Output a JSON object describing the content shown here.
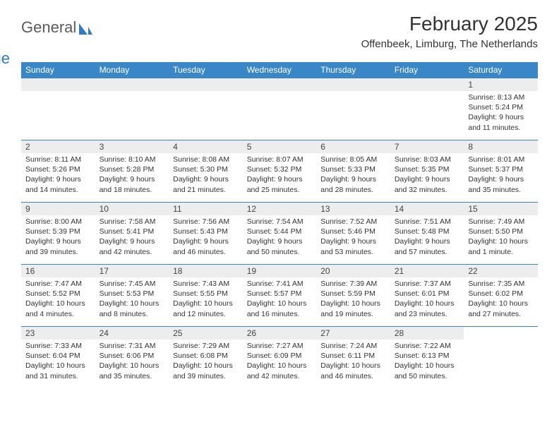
{
  "logo": {
    "general": "General",
    "blue": "Blue"
  },
  "title": "February 2025",
  "subtitle": "Offenbeek, Limburg, The Netherlands",
  "colors": {
    "header_bg": "#3a87c8",
    "header_fg": "#ffffff",
    "daynum_bg": "#ededed",
    "border": "#3a87c8",
    "logo_gray": "#5b5b5b",
    "logo_blue": "#2f7cc4"
  },
  "weekdays": [
    "Sunday",
    "Monday",
    "Tuesday",
    "Wednesday",
    "Thursday",
    "Friday",
    "Saturday"
  ],
  "weeks": [
    [
      null,
      null,
      null,
      null,
      null,
      null,
      {
        "n": "1",
        "sr": "Sunrise: 8:13 AM",
        "ss": "Sunset: 5:24 PM",
        "d1": "Daylight: 9 hours",
        "d2": "and 11 minutes."
      }
    ],
    [
      {
        "n": "2",
        "sr": "Sunrise: 8:11 AM",
        "ss": "Sunset: 5:26 PM",
        "d1": "Daylight: 9 hours",
        "d2": "and 14 minutes."
      },
      {
        "n": "3",
        "sr": "Sunrise: 8:10 AM",
        "ss": "Sunset: 5:28 PM",
        "d1": "Daylight: 9 hours",
        "d2": "and 18 minutes."
      },
      {
        "n": "4",
        "sr": "Sunrise: 8:08 AM",
        "ss": "Sunset: 5:30 PM",
        "d1": "Daylight: 9 hours",
        "d2": "and 21 minutes."
      },
      {
        "n": "5",
        "sr": "Sunrise: 8:07 AM",
        "ss": "Sunset: 5:32 PM",
        "d1": "Daylight: 9 hours",
        "d2": "and 25 minutes."
      },
      {
        "n": "6",
        "sr": "Sunrise: 8:05 AM",
        "ss": "Sunset: 5:33 PM",
        "d1": "Daylight: 9 hours",
        "d2": "and 28 minutes."
      },
      {
        "n": "7",
        "sr": "Sunrise: 8:03 AM",
        "ss": "Sunset: 5:35 PM",
        "d1": "Daylight: 9 hours",
        "d2": "and 32 minutes."
      },
      {
        "n": "8",
        "sr": "Sunrise: 8:01 AM",
        "ss": "Sunset: 5:37 PM",
        "d1": "Daylight: 9 hours",
        "d2": "and 35 minutes."
      }
    ],
    [
      {
        "n": "9",
        "sr": "Sunrise: 8:00 AM",
        "ss": "Sunset: 5:39 PM",
        "d1": "Daylight: 9 hours",
        "d2": "and 39 minutes."
      },
      {
        "n": "10",
        "sr": "Sunrise: 7:58 AM",
        "ss": "Sunset: 5:41 PM",
        "d1": "Daylight: 9 hours",
        "d2": "and 42 minutes."
      },
      {
        "n": "11",
        "sr": "Sunrise: 7:56 AM",
        "ss": "Sunset: 5:43 PM",
        "d1": "Daylight: 9 hours",
        "d2": "and 46 minutes."
      },
      {
        "n": "12",
        "sr": "Sunrise: 7:54 AM",
        "ss": "Sunset: 5:44 PM",
        "d1": "Daylight: 9 hours",
        "d2": "and 50 minutes."
      },
      {
        "n": "13",
        "sr": "Sunrise: 7:52 AM",
        "ss": "Sunset: 5:46 PM",
        "d1": "Daylight: 9 hours",
        "d2": "and 53 minutes."
      },
      {
        "n": "14",
        "sr": "Sunrise: 7:51 AM",
        "ss": "Sunset: 5:48 PM",
        "d1": "Daylight: 9 hours",
        "d2": "and 57 minutes."
      },
      {
        "n": "15",
        "sr": "Sunrise: 7:49 AM",
        "ss": "Sunset: 5:50 PM",
        "d1": "Daylight: 10 hours",
        "d2": "and 1 minute."
      }
    ],
    [
      {
        "n": "16",
        "sr": "Sunrise: 7:47 AM",
        "ss": "Sunset: 5:52 PM",
        "d1": "Daylight: 10 hours",
        "d2": "and 4 minutes."
      },
      {
        "n": "17",
        "sr": "Sunrise: 7:45 AM",
        "ss": "Sunset: 5:53 PM",
        "d1": "Daylight: 10 hours",
        "d2": "and 8 minutes."
      },
      {
        "n": "18",
        "sr": "Sunrise: 7:43 AM",
        "ss": "Sunset: 5:55 PM",
        "d1": "Daylight: 10 hours",
        "d2": "and 12 minutes."
      },
      {
        "n": "19",
        "sr": "Sunrise: 7:41 AM",
        "ss": "Sunset: 5:57 PM",
        "d1": "Daylight: 10 hours",
        "d2": "and 16 minutes."
      },
      {
        "n": "20",
        "sr": "Sunrise: 7:39 AM",
        "ss": "Sunset: 5:59 PM",
        "d1": "Daylight: 10 hours",
        "d2": "and 19 minutes."
      },
      {
        "n": "21",
        "sr": "Sunrise: 7:37 AM",
        "ss": "Sunset: 6:01 PM",
        "d1": "Daylight: 10 hours",
        "d2": "and 23 minutes."
      },
      {
        "n": "22",
        "sr": "Sunrise: 7:35 AM",
        "ss": "Sunset: 6:02 PM",
        "d1": "Daylight: 10 hours",
        "d2": "and 27 minutes."
      }
    ],
    [
      {
        "n": "23",
        "sr": "Sunrise: 7:33 AM",
        "ss": "Sunset: 6:04 PM",
        "d1": "Daylight: 10 hours",
        "d2": "and 31 minutes."
      },
      {
        "n": "24",
        "sr": "Sunrise: 7:31 AM",
        "ss": "Sunset: 6:06 PM",
        "d1": "Daylight: 10 hours",
        "d2": "and 35 minutes."
      },
      {
        "n": "25",
        "sr": "Sunrise: 7:29 AM",
        "ss": "Sunset: 6:08 PM",
        "d1": "Daylight: 10 hours",
        "d2": "and 39 minutes."
      },
      {
        "n": "26",
        "sr": "Sunrise: 7:27 AM",
        "ss": "Sunset: 6:09 PM",
        "d1": "Daylight: 10 hours",
        "d2": "and 42 minutes."
      },
      {
        "n": "27",
        "sr": "Sunrise: 7:24 AM",
        "ss": "Sunset: 6:11 PM",
        "d1": "Daylight: 10 hours",
        "d2": "and 46 minutes."
      },
      {
        "n": "28",
        "sr": "Sunrise: 7:22 AM",
        "ss": "Sunset: 6:13 PM",
        "d1": "Daylight: 10 hours",
        "d2": "and 50 minutes."
      },
      null
    ]
  ]
}
